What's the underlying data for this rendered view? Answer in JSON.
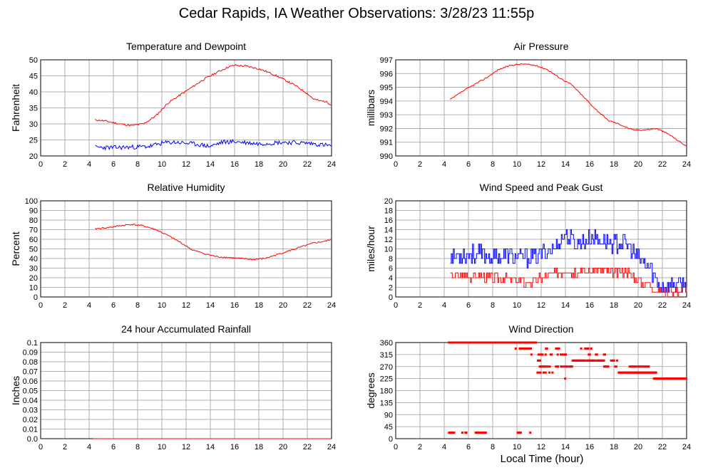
{
  "page": {
    "title": "Cedar Rapids, IA Weather Observations: 3/28/23 11:55p",
    "xlabel": "Local Time (hour)"
  },
  "colors": {
    "primary": "#ff0000",
    "secondary": "#0000ff",
    "grid": "#999999"
  },
  "chart_data": [
    {
      "id": "temp",
      "type": "line",
      "title": "Temperature and Dewpoint",
      "ylabel": "Fahrenheit",
      "xlim": [
        0,
        24
      ],
      "ylim": [
        20,
        50
      ],
      "xticks": [
        0,
        2,
        4,
        6,
        8,
        10,
        12,
        14,
        16,
        18,
        20,
        22,
        24
      ],
      "yticks": [
        20,
        25,
        30,
        35,
        40,
        45,
        50
      ],
      "ytick_labels": [
        "20",
        "25",
        "30",
        "35",
        "40",
        "45",
        "50"
      ],
      "grid": true,
      "series": [
        {
          "color": "#ff0000",
          "noise": 0.3,
          "seed": 11,
          "x": [
            4.5,
            5.5,
            6.5,
            7.5,
            8.5,
            9.5,
            10.5,
            11.5,
            12.5,
            13.5,
            14.5,
            15.5,
            16,
            17,
            18,
            19,
            20,
            21,
            22,
            22.5,
            23,
            23.5,
            24
          ],
          "y": [
            31.3,
            30.8,
            30.0,
            29.5,
            30.0,
            32.5,
            36.5,
            39.0,
            41.5,
            44.0,
            46.0,
            47.8,
            48.3,
            48.0,
            47.2,
            45.8,
            44.0,
            42.0,
            39.5,
            37.8,
            37.2,
            37.0,
            36.0
          ]
        },
        {
          "color": "#0000ff",
          "noise": 0.7,
          "seed": 23,
          "x": [
            4.5,
            6,
            8,
            9,
            10,
            11,
            12,
            13,
            14,
            15,
            16,
            18,
            20,
            22,
            23,
            24
          ],
          "y": [
            22.7,
            22.6,
            22.8,
            23.0,
            24.0,
            24.3,
            24.0,
            23.6,
            23.0,
            24.3,
            24.5,
            23.8,
            24.3,
            24.0,
            23.6,
            23.2
          ]
        }
      ]
    },
    {
      "id": "pressure",
      "type": "line",
      "title": "Air Pressure",
      "ylabel": "millibars",
      "xlim": [
        0,
        24
      ],
      "ylim": [
        990,
        997
      ],
      "xticks": [
        0,
        2,
        4,
        6,
        8,
        10,
        12,
        14,
        16,
        18,
        20,
        22,
        24
      ],
      "yticks": [
        990,
        991,
        992,
        993,
        994,
        995,
        996,
        997
      ],
      "ytick_labels": [
        "990",
        "991",
        "992",
        "993",
        "994",
        "995",
        "996",
        "997"
      ],
      "grid": true,
      "series": [
        {
          "color": "#ff0000",
          "noise": 0.05,
          "seed": 37,
          "x": [
            4.5,
            5.5,
            6.5,
            7.5,
            8.5,
            9.5,
            10.5,
            11.5,
            12.5,
            13.5,
            14.5,
            15.5,
            16.5,
            17.5,
            18.5,
            19.5,
            20.5,
            21.5,
            22.5,
            23.5,
            24
          ],
          "y": [
            994.1,
            994.7,
            995.2,
            995.7,
            996.3,
            996.6,
            996.7,
            996.6,
            996.3,
            995.7,
            995.2,
            994.3,
            993.4,
            992.6,
            992.3,
            991.9,
            991.9,
            992.0,
            991.6,
            991.0,
            990.7
          ]
        }
      ]
    },
    {
      "id": "humidity",
      "type": "line",
      "title": "Relative Humidity",
      "ylabel": "Percent",
      "xlim": [
        0,
        24
      ],
      "ylim": [
        0,
        100
      ],
      "xticks": [
        0,
        2,
        4,
        6,
        8,
        10,
        12,
        14,
        16,
        18,
        20,
        22,
        24
      ],
      "yticks": [
        0,
        10,
        20,
        30,
        40,
        50,
        60,
        70,
        80,
        90,
        100
      ],
      "ytick_labels": [
        "0",
        "10",
        "20",
        "30",
        "40",
        "50",
        "60",
        "70",
        "80",
        "90",
        "100"
      ],
      "grid": true,
      "series": [
        {
          "color": "#ff0000",
          "noise": 0.8,
          "seed": 41,
          "x": [
            4.5,
            5.5,
            6.5,
            7.5,
            8.5,
            9.5,
            10.5,
            11.5,
            12.5,
            13.5,
            14.5,
            15.5,
            16.5,
            17.5,
            18.5,
            19.5,
            20.5,
            21.5,
            22.5,
            23.5,
            24
          ],
          "y": [
            71,
            72,
            74,
            75.5,
            74,
            70,
            64,
            57,
            49,
            45,
            42,
            41,
            40,
            39,
            40,
            44,
            48,
            52,
            56,
            58,
            60
          ]
        }
      ]
    },
    {
      "id": "wind",
      "type": "line",
      "title": "Wind Speed and Peak Gust",
      "ylabel": "miles/hour",
      "xlim": [
        0,
        24
      ],
      "ylim": [
        0,
        20
      ],
      "xticks": [
        0,
        2,
        4,
        6,
        8,
        10,
        12,
        14,
        16,
        18,
        20,
        22,
        24
      ],
      "yticks": [
        0,
        2,
        4,
        6,
        8,
        10,
        12,
        14,
        16,
        18,
        20
      ],
      "ytick_labels": [
        "0",
        "2",
        "4",
        "6",
        "8",
        "10",
        "12",
        "14",
        "16",
        "18",
        "20"
      ],
      "grid": true,
      "series": [
        {
          "color": "#0000ff",
          "noise": 1.8,
          "step": 1,
          "seed": 53,
          "x": [
            4.5,
            6,
            8,
            10,
            11,
            12,
            13,
            14,
            15,
            16,
            17,
            18,
            19,
            20,
            21,
            21.5,
            22,
            23,
            24
          ],
          "y": [
            8.5,
            9,
            8.5,
            8.5,
            8,
            9,
            10,
            13,
            11,
            12,
            12,
            11,
            11,
            8,
            6,
            3,
            2,
            2.5,
            2.5
          ]
        },
        {
          "color": "#ff0000",
          "noise": 1.0,
          "step": 1,
          "seed": 67,
          "x": [
            4.5,
            6,
            8,
            10,
            11,
            12,
            13,
            14,
            15,
            16,
            17,
            18,
            19,
            20,
            21,
            21.5,
            22,
            23,
            24
          ],
          "y": [
            4.5,
            4.5,
            4,
            3.5,
            3,
            4,
            4.5,
            5.5,
            5,
            5.5,
            5.5,
            5,
            5.5,
            3.5,
            2.5,
            1.5,
            1.2,
            1.2,
            1.5
          ]
        }
      ]
    },
    {
      "id": "rain",
      "type": "line",
      "title": "24 hour Accumulated Rainfall",
      "ylabel": "Inches",
      "xlim": [
        0,
        24
      ],
      "ylim": [
        0,
        0.1
      ],
      "xticks": [
        0,
        2,
        4,
        6,
        8,
        10,
        12,
        14,
        16,
        18,
        20,
        22,
        24
      ],
      "yticks": [
        0,
        0.01,
        0.02,
        0.03,
        0.04,
        0.05,
        0.06,
        0.07,
        0.08,
        0.09,
        0.1
      ],
      "ytick_labels": [
        "0.0",
        "0.01",
        "0.02",
        "0.03",
        "0.04",
        "0.05",
        "0.06",
        "0.07",
        "0.08",
        "0.09",
        "0.1"
      ],
      "grid": true,
      "series": [
        {
          "color": "#ff0000",
          "noise": 0,
          "seed": 1,
          "x": [
            4.3,
            24
          ],
          "y": [
            0,
            0
          ]
        }
      ]
    },
    {
      "id": "direction",
      "type": "scatter",
      "title": "Wind Direction",
      "ylabel": "degrees",
      "xlim": [
        0,
        24
      ],
      "ylim": [
        0,
        360
      ],
      "xticks": [
        0,
        2,
        4,
        6,
        8,
        10,
        12,
        14,
        16,
        18,
        20,
        22,
        24
      ],
      "yticks": [
        0,
        45,
        90,
        135,
        180,
        225,
        270,
        315,
        360
      ],
      "ytick_labels": [
        "0",
        "45",
        "90",
        "135",
        "180",
        "225",
        "270",
        "315",
        "360"
      ],
      "grid": true,
      "series": [
        {
          "color": "#ff0000",
          "segments": [
            {
              "y": 360,
              "from": 4.4,
              "to": 11.6,
              "dense": 1
            },
            {
              "y": 22.5,
              "from": 4.4,
              "to": 4.9,
              "dense": 0.5
            },
            {
              "y": 22.5,
              "from": 5.5,
              "to": 5.9,
              "dense": 0.4
            },
            {
              "y": 22.5,
              "from": 6.6,
              "to": 7.5,
              "dense": 0.8
            },
            {
              "y": 22.5,
              "from": 9.9,
              "to": 10.5,
              "dense": 0.4
            },
            {
              "y": 22.5,
              "from": 11.1,
              "to": 11.4,
              "dense": 0.5
            },
            {
              "y": 337.5,
              "from": 9.9,
              "to": 11.2,
              "dense": 0.4
            },
            {
              "y": 337.5,
              "from": 12.4,
              "to": 13.6,
              "dense": 0.35
            },
            {
              "y": 337.5,
              "from": 15.3,
              "to": 16.3,
              "dense": 0.35
            },
            {
              "y": 315,
              "from": 11.2,
              "to": 12.9,
              "dense": 0.3
            },
            {
              "y": 315,
              "from": 13.2,
              "to": 14.2,
              "dense": 0.3
            },
            {
              "y": 315,
              "from": 15.6,
              "to": 17.6,
              "dense": 0.3
            },
            {
              "y": 292.5,
              "from": 11.4,
              "to": 12.2,
              "dense": 0.4
            },
            {
              "y": 292.5,
              "from": 14.6,
              "to": 17.3,
              "dense": 0.9
            },
            {
              "y": 292.5,
              "from": 17.6,
              "to": 18.4,
              "dense": 0.6
            },
            {
              "y": 270,
              "from": 11.8,
              "to": 14.6,
              "dense": 0.7
            },
            {
              "y": 270,
              "from": 17.2,
              "to": 18.3,
              "dense": 0.4
            },
            {
              "y": 270,
              "from": 19.3,
              "to": 20.9,
              "dense": 0.9
            },
            {
              "y": 247.5,
              "from": 11.7,
              "to": 12.4,
              "dense": 0.7
            },
            {
              "y": 247.5,
              "from": 12.6,
              "to": 13.0,
              "dense": 0.5
            },
            {
              "y": 247.5,
              "from": 18.4,
              "to": 21.5,
              "dense": 1
            },
            {
              "y": 225,
              "from": 13.9,
              "to": 14.1,
              "dense": 0.5
            },
            {
              "y": 225,
              "from": 21.3,
              "to": 24,
              "dense": 1
            }
          ]
        }
      ]
    }
  ]
}
